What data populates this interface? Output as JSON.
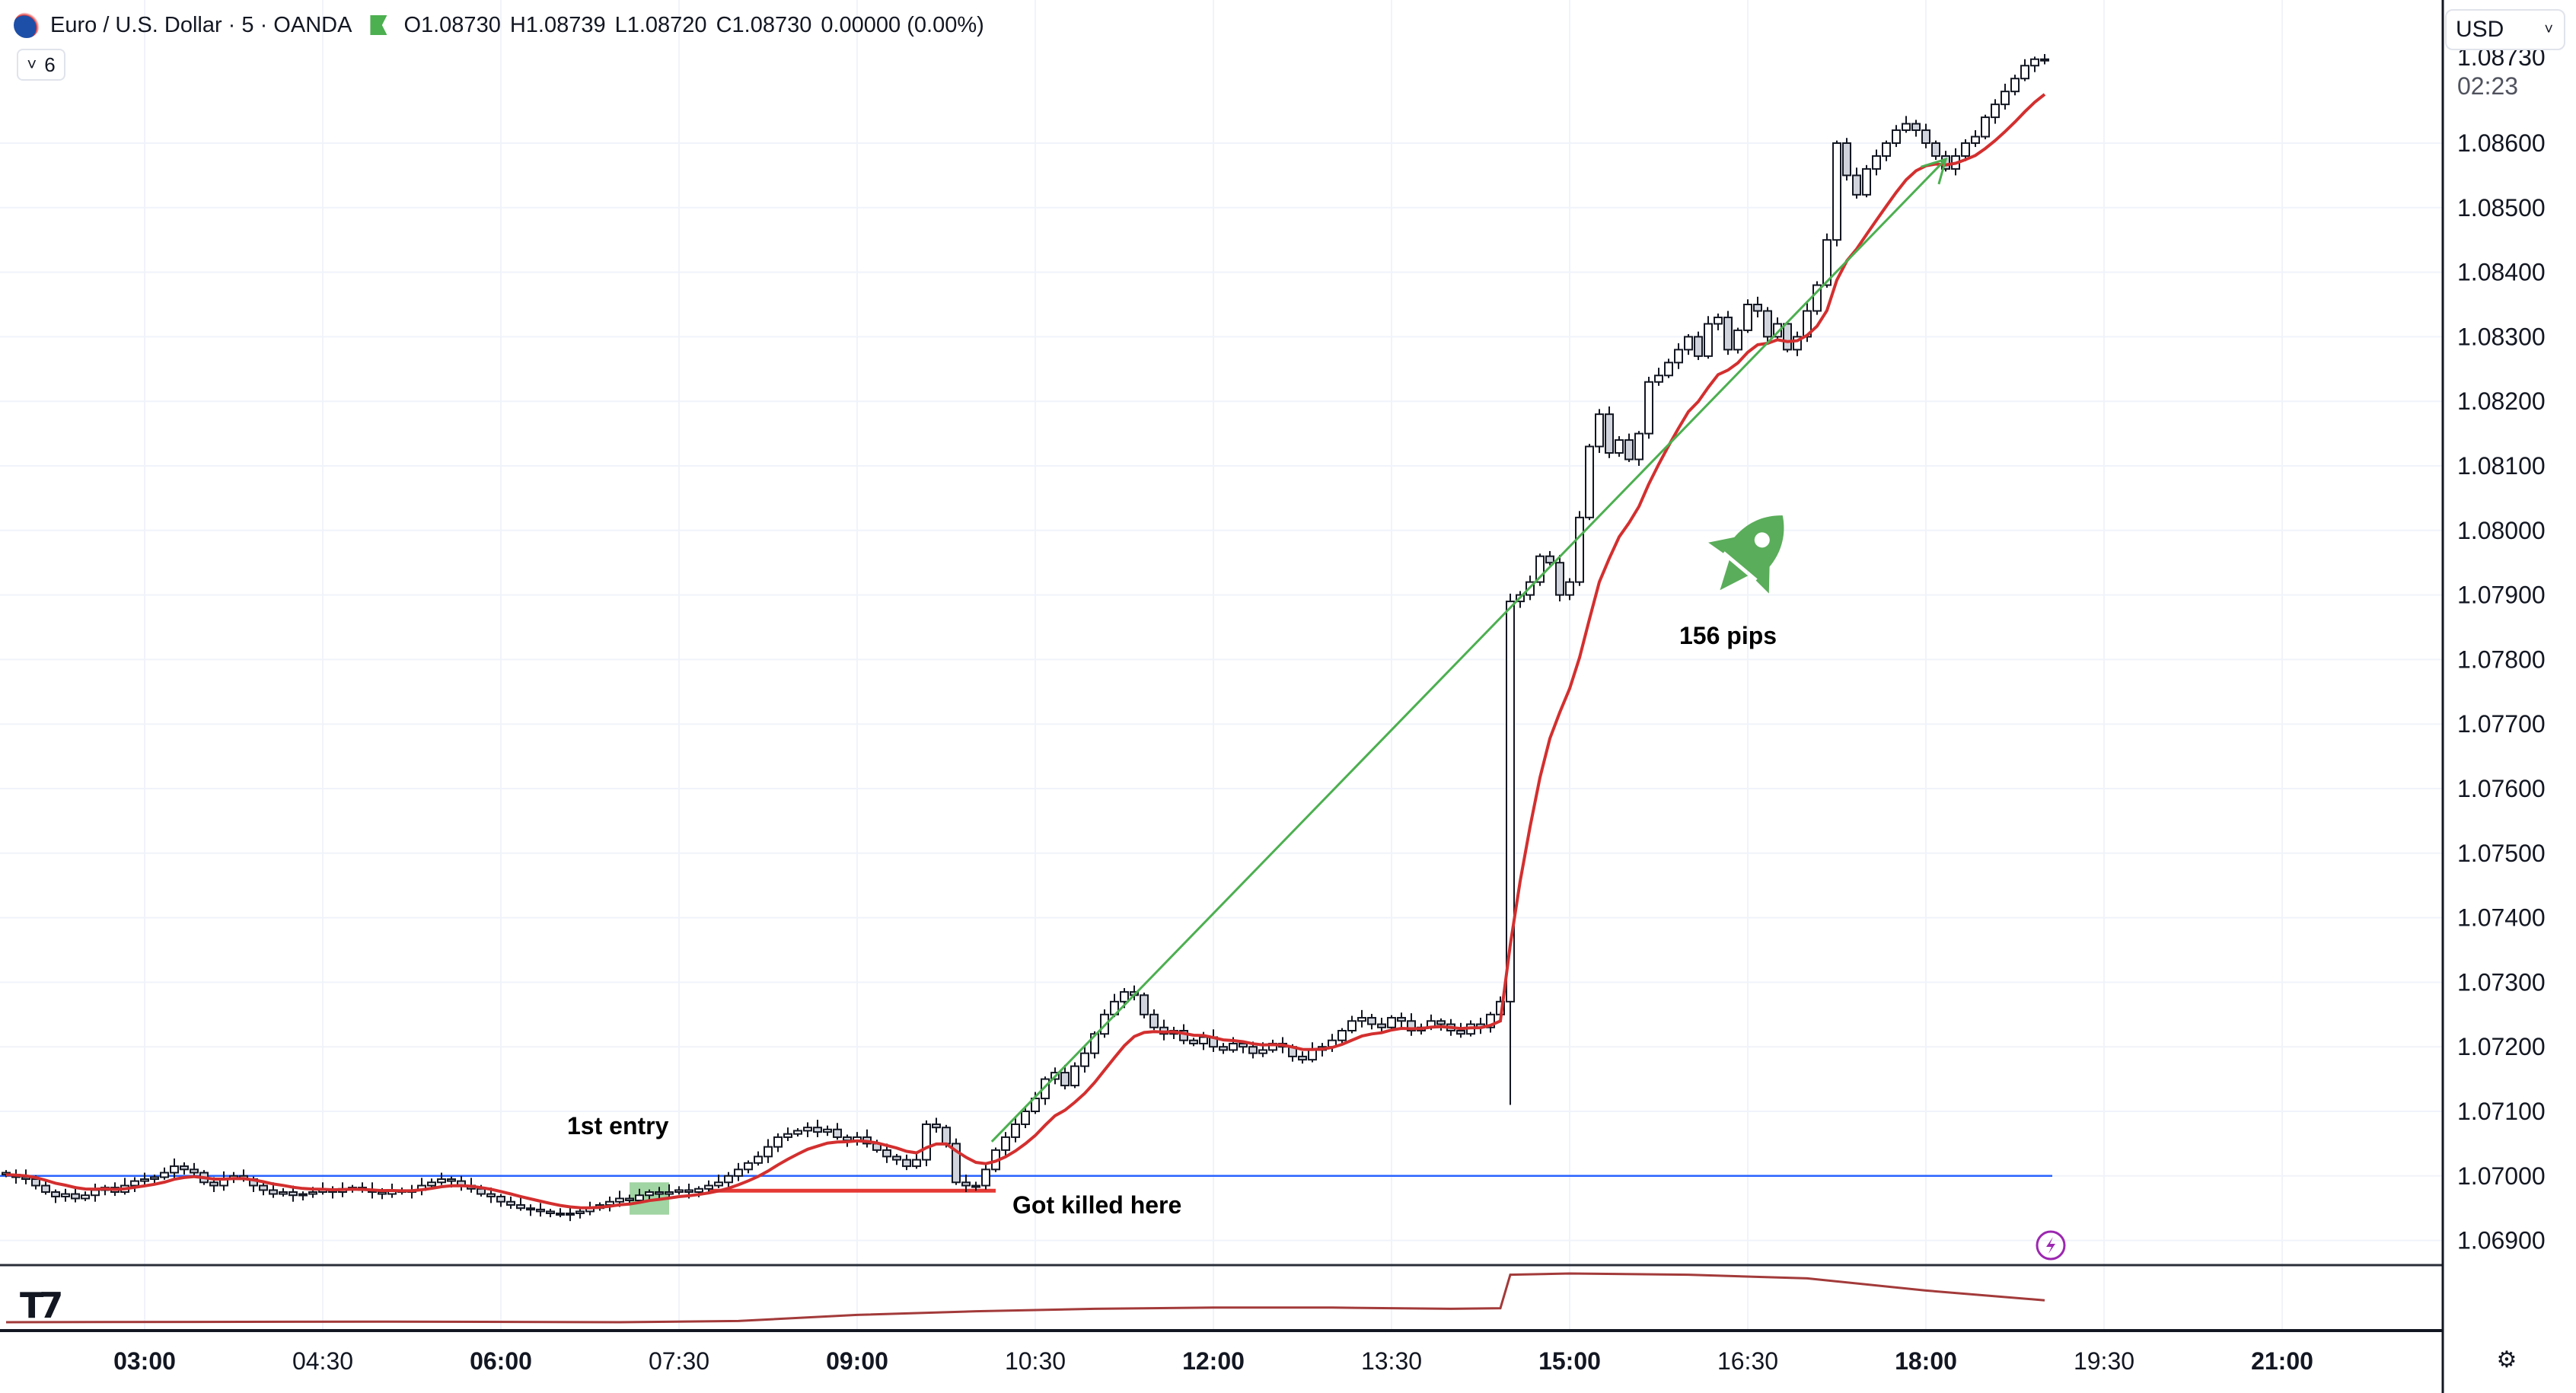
{
  "header": {
    "symbol": "Euro / U.S. Dollar · 5 · OANDA",
    "open": "O1.08730",
    "high": "H1.08739",
    "low": "L1.08720",
    "close": "C1.08730",
    "change": "0.00000 (0.00%)",
    "indicator_count": "6",
    "chevron": "˅"
  },
  "price_axis": {
    "currency": "USD",
    "last_price": "1.08730",
    "countdown": "02:23",
    "labels": [
      "1.08600",
      "1.08500",
      "1.08400",
      "1.08300",
      "1.08200",
      "1.08100",
      "1.08000",
      "1.07900",
      "1.07800",
      "1.07700",
      "1.07600",
      "1.07500",
      "1.07400",
      "1.07300",
      "1.07200",
      "1.07100",
      "1.07000",
      "1.06900"
    ]
  },
  "time_axis": {
    "labels": [
      {
        "text": "03:00",
        "bold": true
      },
      {
        "text": "04:30",
        "bold": false
      },
      {
        "text": "06:00",
        "bold": true
      },
      {
        "text": "07:30",
        "bold": false
      },
      {
        "text": "09:00",
        "bold": true
      },
      {
        "text": "10:30",
        "bold": false
      },
      {
        "text": "12:00",
        "bold": true
      },
      {
        "text": "13:30",
        "bold": false
      },
      {
        "text": "15:00",
        "bold": true
      },
      {
        "text": "16:30",
        "bold": false
      },
      {
        "text": "18:00",
        "bold": true
      },
      {
        "text": "19:30",
        "bold": false
      },
      {
        "text": "21:00",
        "bold": true
      }
    ]
  },
  "annotations": {
    "entry": "1st entry",
    "killed": "Got killed here",
    "pips": "156 pips"
  },
  "logo": "TV",
  "colors": {
    "up_fill": "#ffffff",
    "down_fill": "#d1d4dc",
    "candle_stroke": "#131722",
    "ema": "#d32f2f",
    "hline": "#2962ff",
    "stop": "#e53935",
    "arrow": "#4caf50",
    "grid": "#f0f3fa"
  },
  "chart_data": {
    "type": "candlestick",
    "title": "Euro / U.S. Dollar · 5 · OANDA",
    "interval_minutes": 5,
    "start_time": "01:50",
    "first_open": 1.07005,
    "closes": [
      1.07002,
      1.06998,
      1.06995,
      1.06985,
      1.06975,
      1.06968,
      1.06972,
      1.06965,
      1.0697,
      1.06978,
      1.06982,
      1.06975,
      1.06985,
      1.06992,
      1.06995,
      1.06998,
      1.07005,
      1.07015,
      1.0701,
      1.07005,
      1.0699,
      1.06985,
      1.06995,
      1.07,
      1.06995,
      1.06985,
      1.06978,
      1.06972,
      1.06975,
      1.0697,
      1.06972,
      1.06975,
      1.06978,
      1.06975,
      1.0698,
      1.06982,
      1.06978,
      1.06975,
      1.06972,
      1.06978,
      1.06975,
      1.06978,
      1.06985,
      1.0699,
      1.06995,
      1.06992,
      1.06985,
      1.0698,
      1.06972,
      1.06968,
      1.0696,
      1.06955,
      1.0695,
      1.06948,
      1.06945,
      1.06942,
      1.0694,
      1.06942,
      1.06945,
      1.0695,
      1.06955,
      1.0696,
      1.06965,
      1.06962,
      1.0697,
      1.06975,
      1.06972,
      1.06975,
      1.06978,
      1.06975,
      1.0698,
      1.06985,
      1.0699,
      1.07,
      1.0701,
      1.0702,
      1.0703,
      1.07045,
      1.0706,
      1.07065,
      1.0707,
      1.07075,
      1.07068,
      1.07072,
      1.0706,
      1.07055,
      1.0706,
      1.0705,
      1.0704,
      1.0703,
      1.07025,
      1.07015,
      1.07025,
      1.0708,
      1.07075,
      1.0705,
      1.0699,
      1.06985,
      1.06985,
      1.0701,
      1.0704,
      1.0706,
      1.0708,
      1.071,
      1.0712,
      1.0715,
      1.0716,
      1.0714,
      1.0717,
      1.0719,
      1.0722,
      1.0725,
      1.0727,
      1.07285,
      1.0728,
      1.0725,
      1.0723,
      1.0722,
      1.07225,
      1.0721,
      1.07205,
      1.07215,
      1.072,
      1.07195,
      1.07205,
      1.072,
      1.0719,
      1.07195,
      1.07205,
      1.072,
      1.07185,
      1.0718,
      1.07195,
      1.072,
      1.0721,
      1.07225,
      1.0724,
      1.07245,
      1.07235,
      1.0723,
      1.07245,
      1.0724,
      1.07225,
      1.0723,
      1.0724,
      1.07235,
      1.07225,
      1.0722,
      1.07235,
      1.0723,
      1.0725,
      1.0727,
      1.0789,
      1.079,
      1.0792,
      1.0796,
      1.0795,
      1.079,
      1.0792,
      1.0802,
      1.0813,
      1.0818,
      1.0812,
      1.0814,
      1.0811,
      1.0815,
      1.0823,
      1.0824,
      1.0826,
      1.0828,
      1.083,
      1.0827,
      1.0832,
      1.0833,
      1.0828,
      1.0831,
      1.0835,
      1.0834,
      1.083,
      1.0832,
      1.0828,
      1.083,
      1.0834,
      1.0838,
      1.0845,
      1.086,
      1.0855,
      1.0852,
      1.0856,
      1.0858,
      1.086,
      1.0862,
      1.0863,
      1.0862,
      1.086,
      1.0858,
      1.0856,
      1.0858,
      1.086,
      1.0861,
      1.0864,
      1.0866,
      1.0868,
      1.087,
      1.0872,
      1.0873,
      1.0873
    ],
    "low_overrides": {
      "152": 1.0711
    },
    "ema_period": 10,
    "ylim": [
      1.0688,
      1.0875
    ],
    "horizontal_line": {
      "price": 1.07
    },
    "stop_line": {
      "price": 1.06977,
      "from": "07:45",
      "to": "10:10"
    },
    "entry_box": {
      "from": "07:05",
      "to": "07:25",
      "top": 1.0699,
      "bottom": 1.0694
    },
    "arrow": {
      "from": {
        "time": "10:08",
        "price": 1.07053
      },
      "to": {
        "time": "18:10",
        "price": 1.08575
      }
    },
    "indicator": [
      [
        "01:50",
        10
      ],
      [
        "05:00",
        11
      ],
      [
        "07:00",
        10
      ],
      [
        "08:00",
        12
      ],
      [
        "09:00",
        22
      ],
      [
        "10:00",
        28
      ],
      [
        "11:00",
        32
      ],
      [
        "12:00",
        34
      ],
      [
        "13:00",
        34
      ],
      [
        "14:00",
        32
      ],
      [
        "14:25",
        33
      ],
      [
        "14:30",
        88
      ],
      [
        "15:00",
        90
      ],
      [
        "16:00",
        88
      ],
      [
        "17:00",
        82
      ],
      [
        "18:00",
        62
      ],
      [
        "19:00",
        46
      ]
    ]
  }
}
